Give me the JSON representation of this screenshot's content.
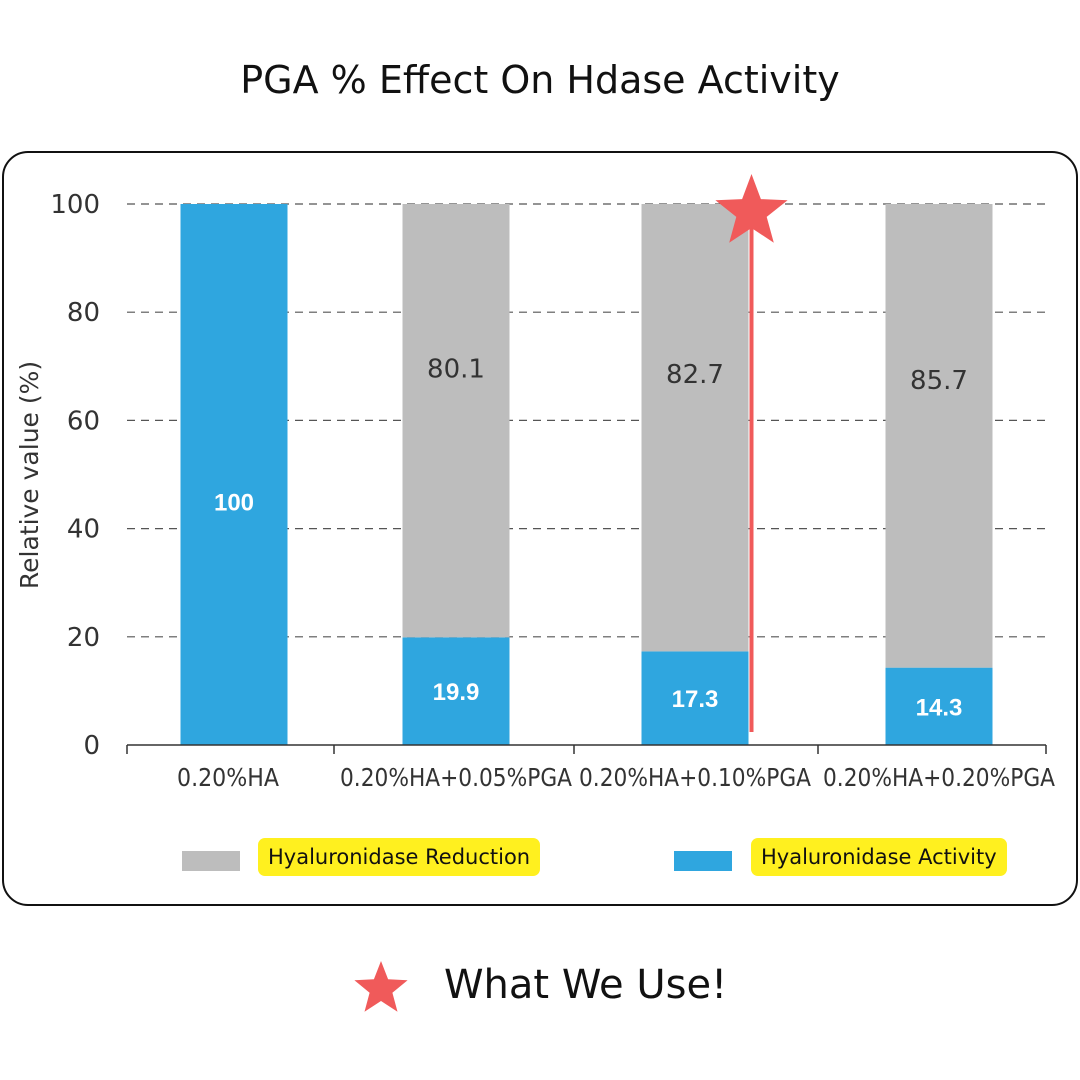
{
  "page": {
    "title": "PGA % Effect On Hdase Activity",
    "footer_text": "What We Use!",
    "footer_icon": "star-icon"
  },
  "colors": {
    "activity": "#2fa6df",
    "reduction": "#bdbdbd",
    "highlight": "#f05a5a",
    "label_highlight": "#fff01f"
  },
  "chart_data": {
    "type": "bar",
    "stacked": true,
    "title": "",
    "xlabel": "",
    "ylabel": "Relative value (%)",
    "ylim": [
      0,
      100
    ],
    "yticks": [
      0,
      20,
      40,
      60,
      80,
      100
    ],
    "grid": "horizontal dashed",
    "categories": [
      "0.20%HA",
      "0.20%HA+0.05%PGA",
      "0.20%HA+0.10%PGA",
      "0.20%HA+0.20%PGA"
    ],
    "series": [
      {
        "name": "Hyaluronidase Activity",
        "values": [
          100,
          19.9,
          17.3,
          14.3
        ],
        "labels": [
          "100",
          "19.9",
          "17.3",
          "14.3"
        ]
      },
      {
        "name": "Hyaluronidase Reduction",
        "values": [
          0,
          80.1,
          82.7,
          85.7
        ],
        "labels": [
          "",
          "80.1",
          "82.7",
          "85.7"
        ]
      }
    ],
    "legend": [
      "Hyaluronidase Reduction",
      "Hyaluronidase Activity"
    ],
    "legend_position": "bottom",
    "highlighted_category": "0.20%HA+0.10%PGA"
  }
}
